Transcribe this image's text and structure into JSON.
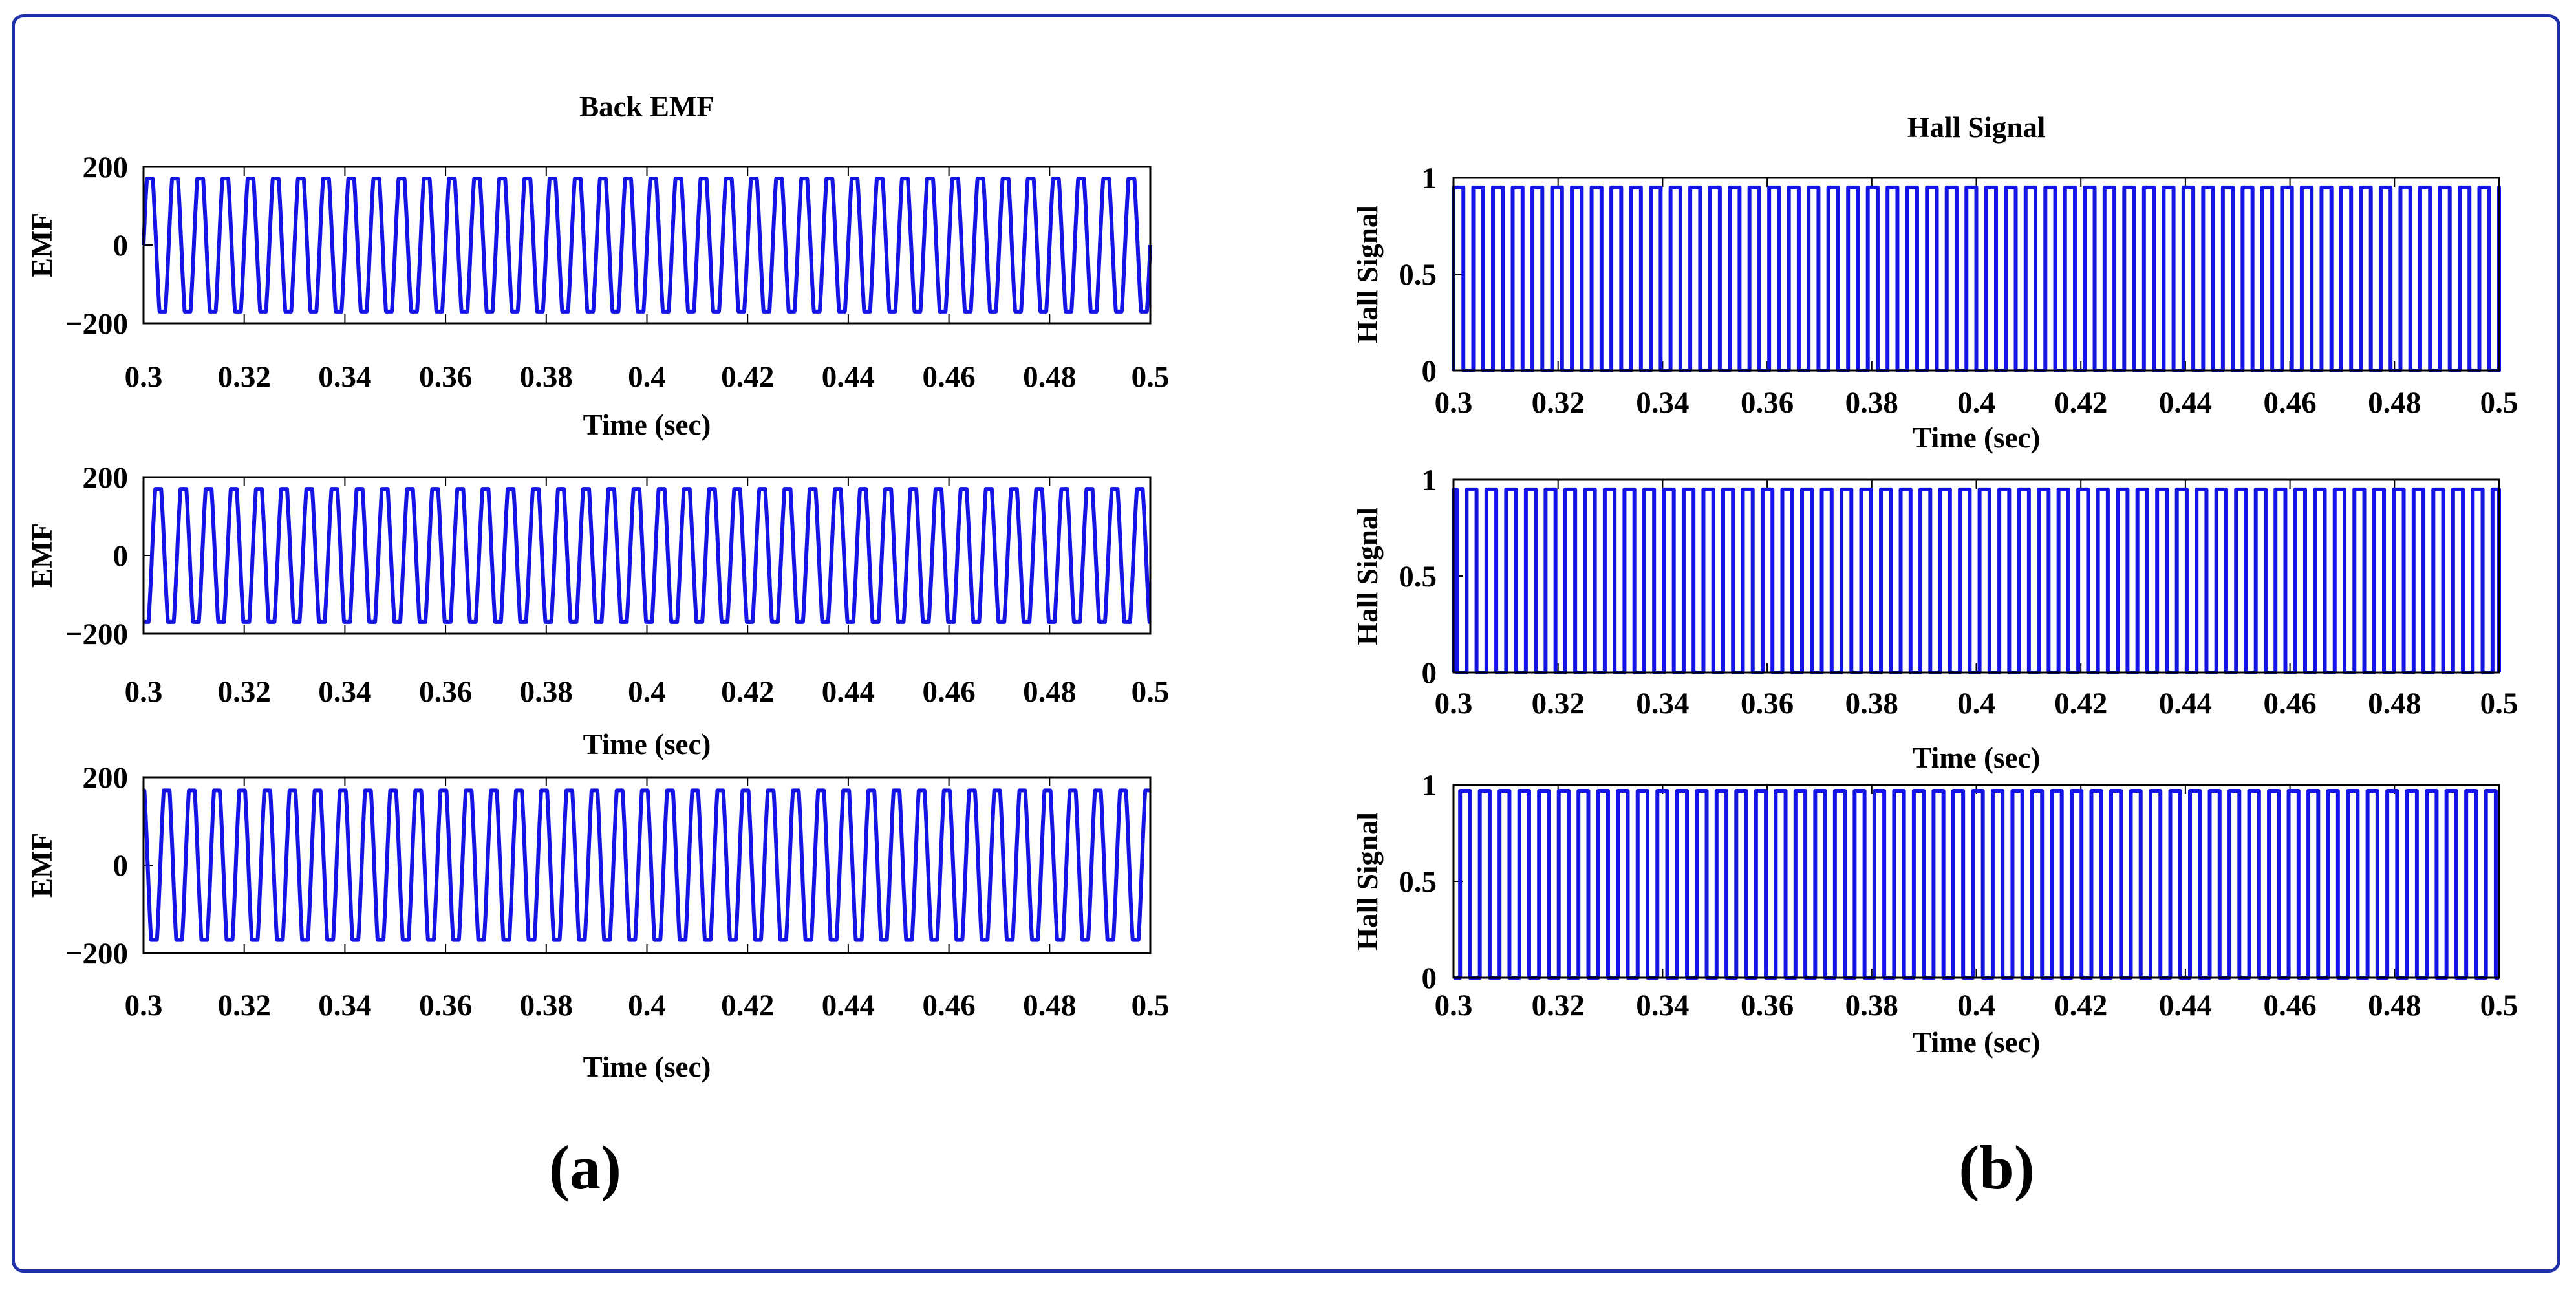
{
  "figure": {
    "panel_labels": [
      "(a)",
      "(b)"
    ],
    "frame_color": "#1f2fa8",
    "line_color": "#1414e6"
  },
  "chart_data": [
    {
      "type": "line",
      "title": "Back EMF",
      "xlabel": "Time (sec)",
      "ylabel": "EMF",
      "xlim": [
        0.3,
        0.5
      ],
      "ylim": [
        -200,
        200
      ],
      "xticks": [
        "0.3",
        "0.32",
        "0.34",
        "0.36",
        "0.38",
        "0.4",
        "0.42",
        "0.44",
        "0.46",
        "0.48",
        "0.5"
      ],
      "yticks": [
        "200",
        "0",
        "−200"
      ],
      "waveform": "flat-top sinusoid",
      "amplitude": 170,
      "cycles": 40,
      "phase_deg": 0
    },
    {
      "type": "line",
      "title": "",
      "xlabel": "Time (sec)",
      "ylabel": "EMF",
      "xlim": [
        0.3,
        0.5
      ],
      "ylim": [
        -200,
        200
      ],
      "xticks": [
        "0.3",
        "0.32",
        "0.34",
        "0.36",
        "0.38",
        "0.4",
        "0.42",
        "0.44",
        "0.46",
        "0.48",
        "0.5"
      ],
      "yticks": [
        "200",
        "0",
        "−200"
      ],
      "waveform": "flat-top sinusoid",
      "amplitude": 170,
      "cycles": 40,
      "phase_deg": 120
    },
    {
      "type": "line",
      "title": "",
      "xlabel": "Time (sec)",
      "ylabel": "EMF",
      "xlim": [
        0.3,
        0.5
      ],
      "ylim": [
        -200,
        200
      ],
      "xticks": [
        "0.3",
        "0.32",
        "0.34",
        "0.36",
        "0.38",
        "0.4",
        "0.42",
        "0.44",
        "0.46",
        "0.48",
        "0.5"
      ],
      "yticks": [
        "200",
        "0",
        "−200"
      ],
      "waveform": "flat-top sinusoid",
      "amplitude": 170,
      "cycles": 40,
      "phase_deg": 240
    },
    {
      "type": "line",
      "title": "Hall Signal",
      "xlabel": "Time (sec)",
      "ylabel": "Hall Signal",
      "xlim": [
        0.3,
        0.5
      ],
      "ylim": [
        0,
        1
      ],
      "xticks": [
        "0.3",
        "0.32",
        "0.34",
        "0.36",
        "0.38",
        "0.4",
        "0.42",
        "0.44",
        "0.46",
        "0.48",
        "0.5"
      ],
      "yticks": [
        "1",
        "0.5",
        "0"
      ],
      "waveform": "square",
      "low": 0,
      "high": 0.95,
      "cycles": 53,
      "phase_deg": 0
    },
    {
      "type": "line",
      "title": "",
      "xlabel": "Time (sec)",
      "ylabel": "Hall Signal",
      "xlim": [
        0.3,
        0.5
      ],
      "ylim": [
        0,
        1
      ],
      "xticks": [
        "0.3",
        "0.32",
        "0.34",
        "0.36",
        "0.38",
        "0.4",
        "0.42",
        "0.44",
        "0.46",
        "0.48",
        "0.5"
      ],
      "yticks": [
        "1",
        "0.5",
        "0"
      ],
      "waveform": "square",
      "low": 0,
      "high": 0.95,
      "cycles": 53,
      "phase_deg": 120
    },
    {
      "type": "line",
      "title": "",
      "xlabel": "Time (sec)",
      "ylabel": "Hall Signal",
      "xlim": [
        0.3,
        0.5
      ],
      "ylim": [
        0,
        1
      ],
      "xticks": [
        "0.3",
        "0.32",
        "0.34",
        "0.36",
        "0.38",
        "0.4",
        "0.42",
        "0.44",
        "0.46",
        "0.48",
        "0.5"
      ],
      "yticks": [
        "1",
        "0.5",
        "0"
      ],
      "waveform": "square",
      "low": 0,
      "high": 0.97,
      "cycles": 53,
      "phase_deg": 240
    }
  ]
}
